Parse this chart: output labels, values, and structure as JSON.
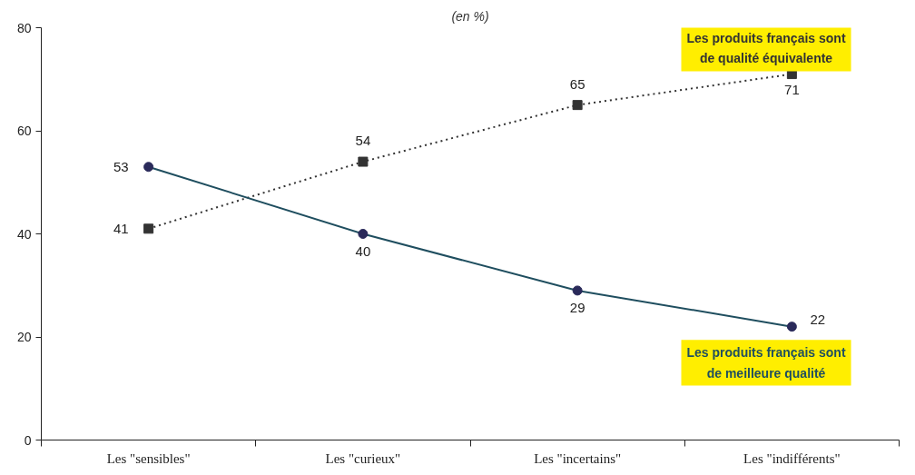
{
  "chart_data": {
    "type": "line",
    "subtitle": "(en %)",
    "categories": [
      "Les \"sensibles\"",
      "Les \"curieux\"",
      "Les \"incertains\"",
      "Les \"indifférents\""
    ],
    "series": [
      {
        "name": "Les produits français sont de qualité équivalente",
        "color": "#333333",
        "values": [
          41,
          54,
          65,
          71
        ],
        "marker": "square",
        "line_style": "dotted"
      },
      {
        "name": "Les produits français sont de meilleure qualité",
        "color": "#1f4e5f",
        "values": [
          53,
          40,
          29,
          22
        ],
        "marker": "circle",
        "line_style": "solid"
      }
    ],
    "ylim": [
      0,
      80
    ],
    "yticks": [
      0,
      20,
      40,
      60,
      80
    ],
    "grid": false,
    "data_labels": true
  }
}
